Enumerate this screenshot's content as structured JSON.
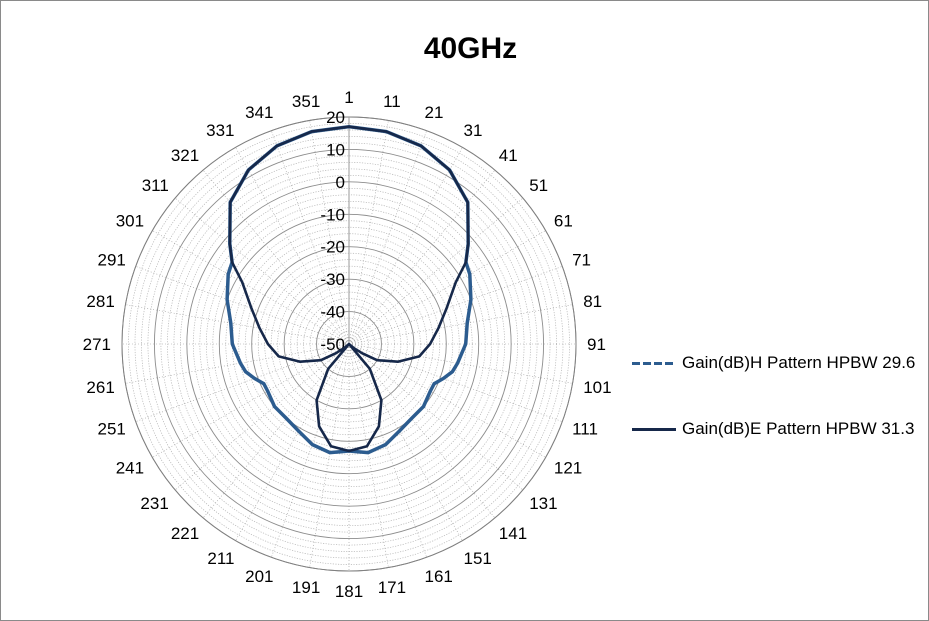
{
  "chart_data": {
    "type": "polar-line",
    "title": "40GHz",
    "angle_ticks": [
      "1",
      "11",
      "21",
      "31",
      "41",
      "51",
      "61",
      "71",
      "81",
      "91",
      "101",
      "111",
      "121",
      "131",
      "141",
      "151",
      "161",
      "171",
      "181",
      "191",
      "201",
      "211",
      "221",
      "231",
      "241",
      "251",
      "261",
      "271",
      "281",
      "291",
      "301",
      "311",
      "321",
      "331",
      "341",
      "351"
    ],
    "radial_ticks": [
      "20",
      "10",
      "0",
      "-10",
      "-20",
      "-30",
      "-40",
      "-50"
    ],
    "rlim": [
      -50,
      20
    ],
    "angle_direction": "clockwise",
    "angle_zero": "top",
    "legend_position": "right",
    "series": [
      {
        "name": "Gain(dB)H Pattern HPBW 29.6",
        "color": "#2c5c8f",
        "angles": [
          0,
          10,
          20,
          30,
          40,
          50,
          55,
          60,
          70,
          80,
          90,
          100,
          105,
          110,
          115,
          120,
          130,
          140,
          150,
          160,
          170,
          180,
          190,
          200,
          210,
          220,
          230,
          240,
          245,
          250,
          255,
          260,
          270,
          280,
          290,
          300,
          305,
          310,
          320,
          330,
          340,
          350,
          360
        ],
        "values": [
          17,
          16.5,
          15,
          12,
          7,
          -2,
          -6,
          -7,
          -10,
          -13,
          -14,
          -16,
          -17,
          -19,
          -21,
          -21,
          -20,
          -20,
          -19,
          -17,
          -16,
          -17,
          -16,
          -17,
          -19,
          -20,
          -20,
          -21,
          -21,
          -19,
          -17,
          -16,
          -14,
          -13,
          -10,
          -7,
          -6,
          -2,
          7,
          12,
          15,
          16.5,
          17
        ]
      },
      {
        "name": "Gain(dB)E Pattern HPBW 31.3",
        "color": "#16284a",
        "angles": [
          0,
          10,
          20,
          30,
          40,
          50,
          55,
          60,
          70,
          80,
          90,
          100,
          110,
          120,
          125,
          130,
          135,
          140,
          150,
          160,
          170,
          180,
          190,
          200,
          210,
          220,
          225,
          230,
          235,
          240,
          250,
          260,
          270,
          280,
          290,
          300,
          305,
          310,
          320,
          330,
          340,
          350,
          360
        ],
        "values": [
          17,
          16.5,
          15,
          12,
          7,
          -2,
          -6,
          -12,
          -18,
          -22,
          -25,
          -28,
          -34,
          -40,
          -45,
          -48,
          -50,
          -40,
          -30,
          -23,
          -18,
          -17,
          -18,
          -23,
          -30,
          -40,
          -50,
          -48,
          -45,
          -40,
          -34,
          -28,
          -25,
          -22,
          -18,
          -12,
          -6,
          -2,
          7,
          12,
          15,
          16.5,
          17
        ]
      }
    ]
  }
}
